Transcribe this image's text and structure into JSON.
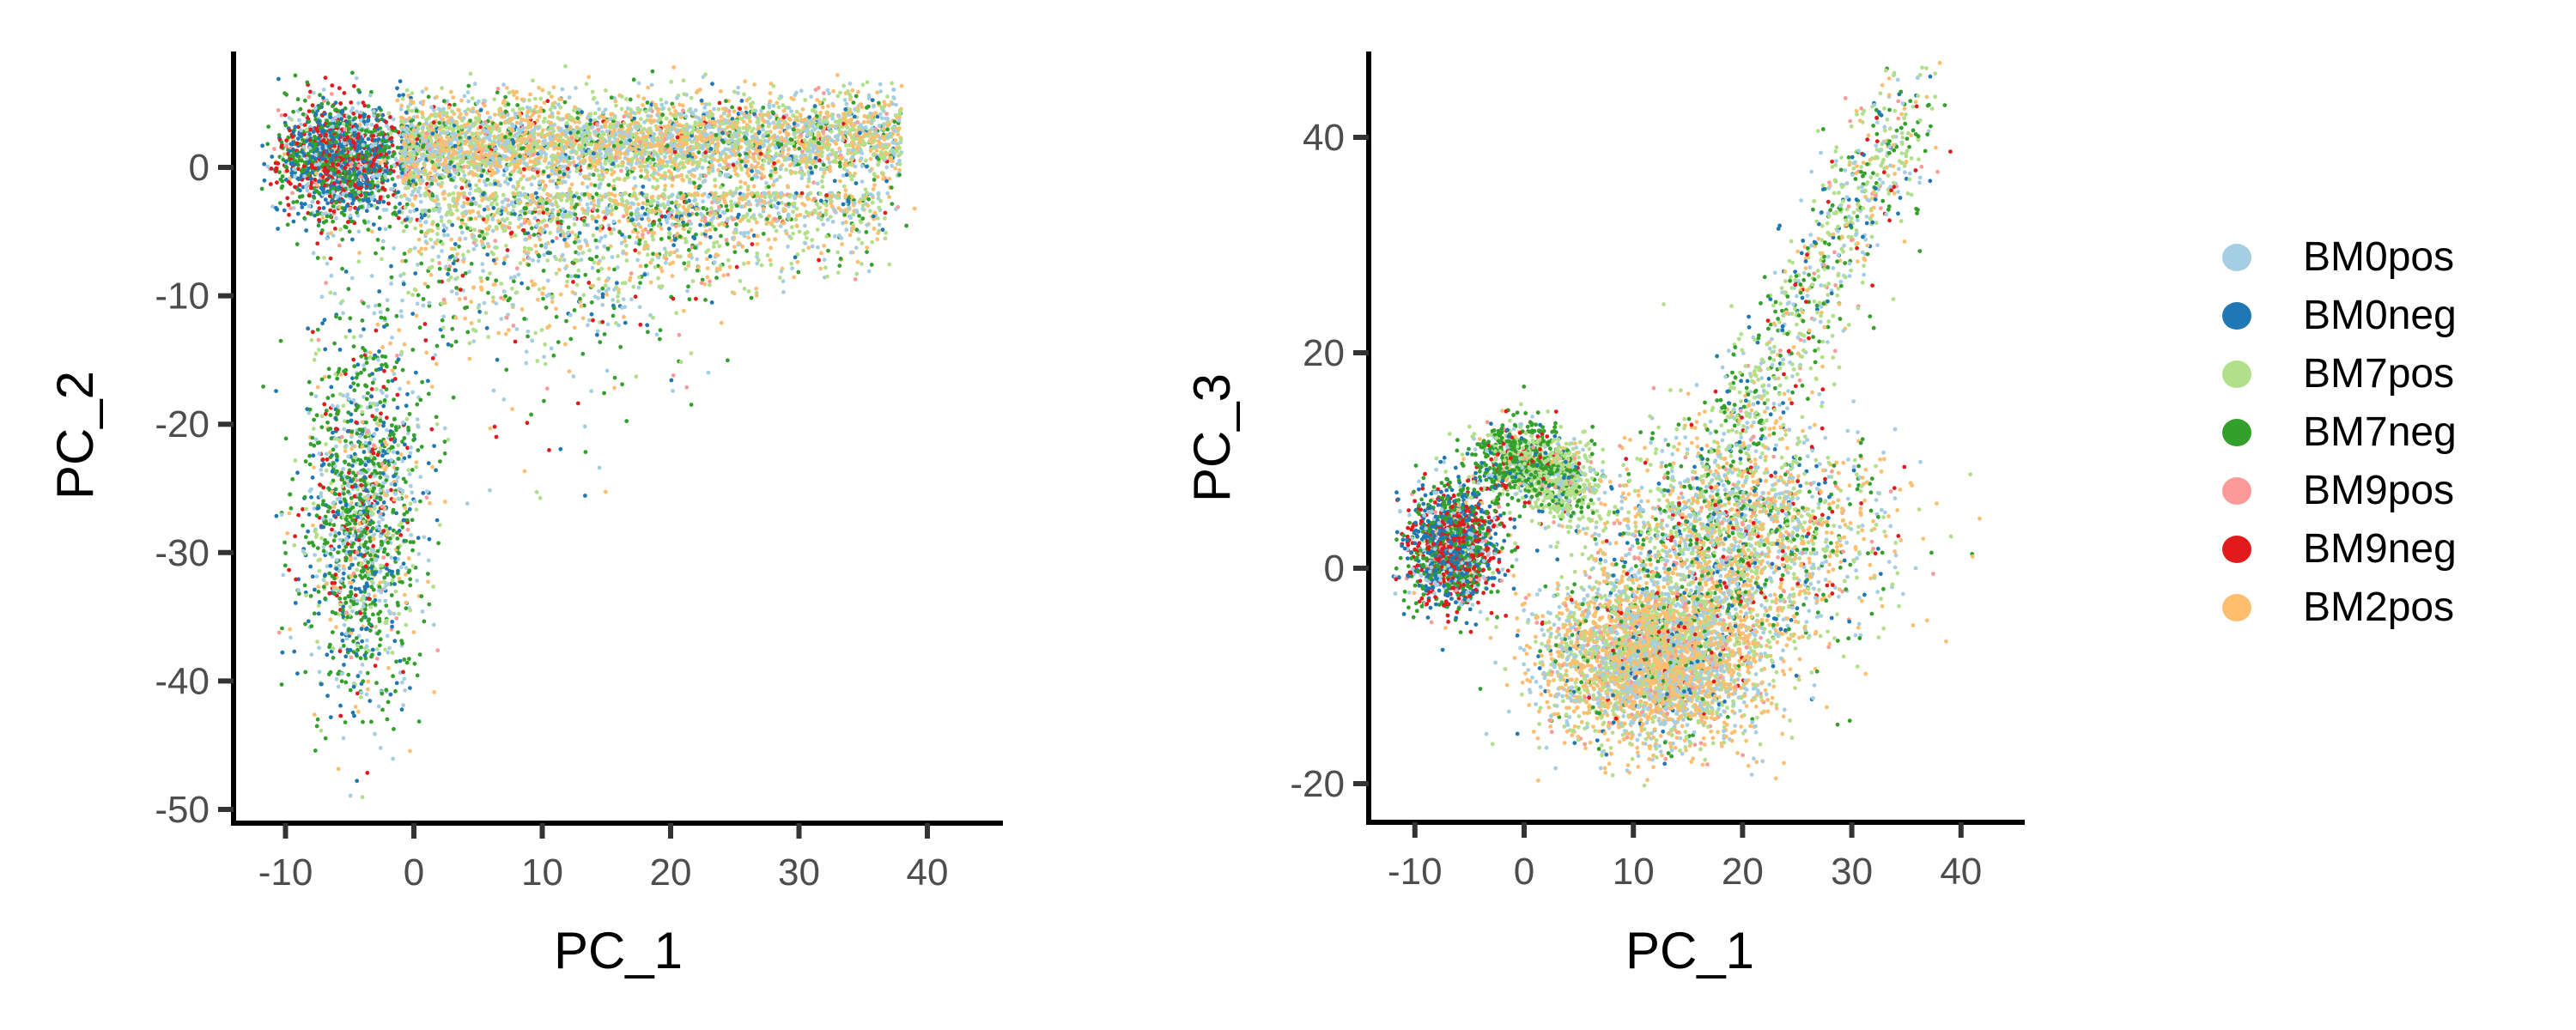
{
  "chart_data": [
    {
      "type": "scatter",
      "panel": "left",
      "title": "",
      "xlabel": "PC_1",
      "ylabel": "PC_2",
      "xlim": [
        -14,
        46
      ],
      "ylim": [
        -51,
        9
      ],
      "xticks": [
        -10,
        0,
        10,
        20,
        30,
        40
      ],
      "xtick_labels": [
        "-10",
        "0",
        "10",
        "20",
        "30",
        "40"
      ],
      "yticks": [
        0,
        -10,
        -20,
        -30,
        -40,
        -50
      ],
      "ytick_labels": [
        "0",
        "-10",
        "-20",
        "-30",
        "-40",
        "-50"
      ],
      "grid": false,
      "clusters": [
        {
          "desc": "tight blob left",
          "x": [
            -11,
            0
          ],
          "y": [
            -4,
            5.5
          ],
          "weights": {
            "BM0pos": 2,
            "BM0neg": 4,
            "BM7pos": 0.2,
            "BM7neg": 3,
            "BM9pos": 0.3,
            "BM9neg": 3,
            "BM2pos": 0.3
          },
          "n": 1800,
          "shape": "ellipse"
        },
        {
          "desc": "horizontal band",
          "x": [
            -1,
            38
          ],
          "y": [
            -3,
            6
          ],
          "weights": {
            "BM0pos": 3,
            "BM0neg": 0.4,
            "BM7pos": 3,
            "BM7neg": 0.8,
            "BM9pos": 0.3,
            "BM9neg": 0.2,
            "BM2pos": 4
          },
          "n": 4200,
          "shape": "band"
        },
        {
          "desc": "diffuse triangle below band",
          "x": [
            0,
            36
          ],
          "y": [
            -14,
            -2
          ],
          "weights": {
            "BM0pos": 3,
            "BM0neg": 0.5,
            "BM7pos": 3,
            "BM7neg": 1,
            "BM9pos": 0.5,
            "BM9neg": 0.3,
            "BM2pos": 3
          },
          "n": 1500,
          "shape": "triangle"
        },
        {
          "desc": "vertical arm",
          "x": [
            -9,
            1
          ],
          "y": [
            -43,
            -12
          ],
          "weights": {
            "BM0pos": 2,
            "BM0neg": 2,
            "BM7pos": 1.2,
            "BM7neg": 4,
            "BM9pos": 0.2,
            "BM9neg": 0.8,
            "BM2pos": 0.8
          },
          "n": 1500,
          "shape": "ellipse"
        },
        {
          "desc": "sparse fan",
          "x": [
            -8,
            24
          ],
          "y": [
            -32,
            -3
          ],
          "weights": {
            "BM0pos": 1.5,
            "BM0neg": 1,
            "BM7pos": 1,
            "BM7neg": 2.5,
            "BM9pos": 0.3,
            "BM9neg": 0.8,
            "BM2pos": 1
          },
          "n": 500,
          "shape": "triangle"
        }
      ]
    },
    {
      "type": "scatter",
      "panel": "right",
      "title": "",
      "xlabel": "PC_1",
      "ylabel": "PC_3",
      "xlim": [
        -14,
        46
      ],
      "ylim": [
        -24,
        48
      ],
      "xticks": [
        -10,
        0,
        10,
        20,
        30,
        40
      ],
      "xtick_labels": [
        "-10",
        "0",
        "10",
        "20",
        "30",
        "40"
      ],
      "yticks": [
        40,
        20,
        0,
        -20
      ],
      "ytick_labels": [
        "40",
        "20",
        "0",
        "-20"
      ],
      "grid": false,
      "clusters": [
        {
          "desc": "left dark blob",
          "x": [
            -11,
            -2
          ],
          "y": [
            -4,
            8
          ],
          "weights": {
            "BM0pos": 1.5,
            "BM0neg": 4,
            "BM7pos": 0.3,
            "BM7neg": 3.5,
            "BM9pos": 0.3,
            "BM9neg": 3,
            "BM2pos": 0.3
          },
          "n": 1600,
          "shape": "ellipse"
        },
        {
          "desc": "upper green lobe",
          "x": [
            -5,
            4
          ],
          "y": [
            6,
            14
          ],
          "weights": {
            "BM0pos": 0.5,
            "BM0neg": 0.5,
            "BM7pos": 2,
            "BM7neg": 4,
            "BM9pos": 0.1,
            "BM9neg": 0.5,
            "BM2pos": 0.2
          },
          "n": 700,
          "shape": "ellipse"
        },
        {
          "desc": "light green lobe",
          "x": [
            0,
            7
          ],
          "y": [
            4,
            12
          ],
          "weights": {
            "BM0pos": 1,
            "BM0neg": 0.2,
            "BM7pos": 4,
            "BM7neg": 0.8,
            "BM9pos": 0.1,
            "BM9neg": 0.1,
            "BM2pos": 0.3
          },
          "n": 500,
          "shape": "ellipse"
        },
        {
          "desc": "lower dense mass",
          "x": [
            1,
            23
          ],
          "y": [
            -17,
            0
          ],
          "weights": {
            "BM0pos": 3,
            "BM0neg": 0.3,
            "BM7pos": 2.5,
            "BM7neg": 0.4,
            "BM9pos": 0.5,
            "BM9neg": 0.2,
            "BM2pos": 5
          },
          "n": 4000,
          "shape": "ellipse"
        },
        {
          "desc": "middle spread",
          "x": [
            5,
            34
          ],
          "y": [
            -8,
            14
          ],
          "weights": {
            "BM0pos": 2.5,
            "BM0neg": 0.6,
            "BM7pos": 2.5,
            "BM7neg": 1.5,
            "BM9pos": 0.4,
            "BM9neg": 0.4,
            "BM2pos": 3
          },
          "n": 2200,
          "shape": "ellipse"
        },
        {
          "desc": "upward arm",
          "x": [
            18,
            36
          ],
          "y": [
            10,
            44
          ],
          "weights": {
            "BM0pos": 1.5,
            "BM0neg": 0.6,
            "BM7pos": 3,
            "BM7neg": 1.6,
            "BM9pos": 0.3,
            "BM9neg": 0.3,
            "BM2pos": 1
          },
          "n": 900,
          "shape": "diagonal"
        }
      ]
    }
  ],
  "legend": {
    "position": "right",
    "items": [
      {
        "label": "BM0pos",
        "color": "#A6CEE3"
      },
      {
        "label": "BM0neg",
        "color": "#1F78B4"
      },
      {
        "label": "BM7pos",
        "color": "#B2DF8A"
      },
      {
        "label": "BM7neg",
        "color": "#33A02C"
      },
      {
        "label": "BM9pos",
        "color": "#FB9A99"
      },
      {
        "label": "BM9neg",
        "color": "#E31A1C"
      },
      {
        "label": "BM2pos",
        "color": "#FDBF6F"
      }
    ]
  },
  "panels": {
    "left": {
      "ylabel": "PC_2",
      "xlabel": "PC_1"
    },
    "right": {
      "ylabel": "PC_3",
      "xlabel": "PC_1"
    }
  }
}
